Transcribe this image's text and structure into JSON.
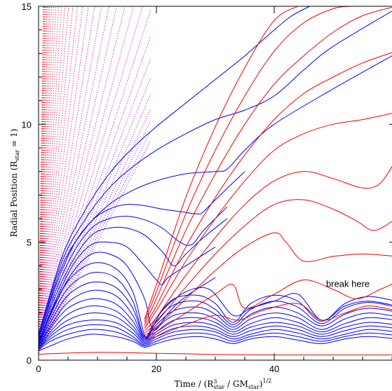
{
  "chart_data": {
    "type": "line",
    "title": "",
    "xlabel": {
      "pre": "Time / (R",
      "sup1": "3",
      "sub1": "star",
      "mid": " / GM",
      "sub2": "star",
      "post": ")",
      "sup2": "1/2"
    },
    "ylabel": {
      "pre": "Radial Position (R",
      "sub": "star",
      "post": " = 1)"
    },
    "xlim": [
      0,
      60.7
    ],
    "ylim": [
      0,
      15
    ],
    "xticks": [
      0,
      20,
      40
    ],
    "yticks": [
      0,
      5,
      10,
      15
    ],
    "annotation": {
      "text": "break here",
      "x": 52.5,
      "y": 3.1
    },
    "colors": {
      "bound": "#0000ee",
      "unbound": "#ee0000"
    },
    "series": [
      {
        "color": "red",
        "x": [
          0,
          5,
          10,
          15,
          18,
          25,
          30,
          40,
          50,
          60.7
        ],
        "y": [
          0.25,
          0.3,
          0.33,
          0.32,
          0.3,
          0.27,
          0.24,
          0.22,
          0.22,
          0.22
        ]
      },
      {
        "color": "blue",
        "x": [
          0,
          2,
          5,
          9,
          13,
          16,
          18,
          20,
          23,
          27,
          30,
          33,
          36,
          40,
          44,
          48,
          52,
          56,
          60.7
        ],
        "y": [
          0.4,
          0.6,
          0.9,
          1.1,
          1.0,
          0.8,
          0.55,
          0.7,
          0.9,
          1.0,
          0.9,
          0.7,
          0.9,
          1.0,
          0.85,
          0.7,
          0.9,
          1.0,
          0.9
        ]
      },
      {
        "color": "blue",
        "x": [
          0,
          2,
          5,
          9,
          13,
          16,
          18,
          20,
          23,
          27,
          30,
          33,
          36,
          40,
          44,
          48,
          52,
          56,
          60.7
        ],
        "y": [
          0.45,
          0.8,
          1.1,
          1.3,
          1.2,
          0.9,
          0.6,
          0.8,
          1.05,
          1.15,
          1.05,
          0.8,
          1.0,
          1.15,
          1.0,
          0.8,
          1.0,
          1.15,
          1.05
        ]
      },
      {
        "color": "blue",
        "x": [
          0,
          2,
          5,
          9,
          13,
          16,
          18,
          20,
          23,
          27,
          30,
          33,
          36,
          40,
          44,
          48,
          52,
          56,
          60.7
        ],
        "y": [
          0.5,
          0.9,
          1.3,
          1.5,
          1.4,
          1.0,
          0.65,
          0.9,
          1.2,
          1.3,
          1.2,
          0.9,
          1.1,
          1.3,
          1.15,
          0.9,
          1.1,
          1.3,
          1.2
        ]
      },
      {
        "color": "blue",
        "x": [
          0,
          2,
          5,
          9,
          13,
          16,
          18,
          20,
          23,
          27,
          30,
          33,
          36,
          40,
          44,
          48,
          52,
          56,
          60.7
        ],
        "y": [
          0.5,
          1.0,
          1.5,
          1.7,
          1.6,
          1.15,
          0.7,
          1.0,
          1.35,
          1.45,
          1.3,
          1.0,
          1.25,
          1.45,
          1.3,
          1.0,
          1.25,
          1.45,
          1.35
        ]
      },
      {
        "color": "blue",
        "x": [
          0,
          2,
          5,
          9,
          13,
          16,
          18,
          20,
          23,
          27,
          30,
          33,
          36,
          40,
          44,
          48,
          52,
          56,
          60.7
        ],
        "y": [
          0.55,
          1.1,
          1.7,
          2.0,
          1.85,
          1.3,
          0.75,
          1.1,
          1.5,
          1.6,
          1.45,
          1.1,
          1.4,
          1.6,
          1.45,
          1.1,
          1.4,
          1.6,
          1.5
        ]
      },
      {
        "color": "blue",
        "x": [
          0,
          2,
          5,
          9,
          13,
          16,
          18,
          20,
          23,
          27,
          30,
          33,
          36,
          40,
          44,
          48,
          52,
          56,
          60.7
        ],
        "y": [
          0.6,
          1.2,
          1.95,
          2.3,
          2.1,
          1.45,
          0.8,
          1.2,
          1.7,
          1.8,
          1.6,
          1.2,
          1.55,
          1.8,
          1.6,
          1.2,
          1.55,
          1.8,
          1.7
        ]
      },
      {
        "color": "blue",
        "x": [
          0,
          2,
          5,
          9,
          13,
          16,
          18,
          20,
          23,
          27,
          30,
          33,
          36,
          40,
          44,
          48,
          52,
          56,
          60.7
        ],
        "y": [
          0.6,
          1.35,
          2.2,
          2.6,
          2.4,
          1.65,
          0.85,
          1.35,
          1.9,
          2.0,
          1.75,
          1.3,
          1.75,
          2.0,
          1.8,
          1.3,
          1.75,
          2.0,
          1.85
        ]
      },
      {
        "color": "blue",
        "x": [
          0,
          2,
          5,
          9,
          13,
          16,
          18,
          20,
          23,
          27,
          30,
          33,
          36,
          40,
          44,
          48,
          52,
          56,
          60.7
        ],
        "y": [
          0.65,
          1.45,
          2.45,
          2.95,
          2.75,
          1.9,
          0.9,
          1.5,
          2.1,
          2.25,
          1.95,
          1.4,
          1.95,
          2.25,
          2.0,
          1.45,
          1.95,
          2.2,
          2.05
        ]
      },
      {
        "color": "blue",
        "x": [
          0,
          2,
          5,
          9,
          13,
          16,
          18,
          20,
          23,
          27,
          30,
          33,
          36,
          40,
          44,
          48,
          52,
          56,
          60.7
        ],
        "y": [
          0.7,
          1.6,
          2.75,
          3.3,
          3.1,
          2.2,
          0.95,
          1.65,
          2.35,
          2.5,
          2.15,
          1.5,
          2.15,
          2.5,
          2.25,
          1.55,
          2.2,
          2.45,
          2.25
        ]
      },
      {
        "color": "blue",
        "x": [
          0,
          2,
          5,
          9,
          13,
          16,
          18,
          20,
          23,
          27,
          30,
          33,
          36,
          40,
          44,
          48,
          52,
          56,
          60.7
        ],
        "y": [
          0.7,
          1.75,
          3.05,
          3.7,
          3.5,
          2.5,
          1.0,
          1.8,
          2.6,
          2.75,
          2.4,
          1.6,
          2.4,
          2.75,
          2.5,
          1.65,
          2.4,
          2.7,
          2.5
        ]
      },
      {
        "color": "blue",
        "x": [
          0,
          2,
          5,
          9,
          13,
          16,
          18,
          19,
          21,
          25,
          29,
          33,
          36,
          40,
          44,
          48,
          52,
          56,
          60.7
        ],
        "y": [
          0.75,
          1.9,
          3.35,
          4.1,
          3.9,
          2.9,
          1.05,
          1.2,
          2.1,
          2.9,
          3.0,
          1.9,
          2.2,
          2.5,
          2.8,
          1.7,
          2.3,
          2.5,
          2.3
        ]
      },
      {
        "color": "blue",
        "x": [
          0,
          3,
          6,
          9,
          12,
          15,
          18,
          19,
          20,
          22,
          25,
          30
        ],
        "y": [
          0.8,
          2.5,
          3.8,
          4.5,
          4.5,
          4.0,
          2.6,
          1.5,
          1.3,
          2.0,
          2.7,
          3.5
        ]
      },
      {
        "color": "blue",
        "x": [
          0,
          3,
          6,
          9,
          12,
          15,
          18,
          20,
          21,
          22,
          25,
          30
        ],
        "y": [
          0.8,
          2.6,
          4.1,
          4.9,
          5.0,
          4.8,
          4.0,
          3.4,
          3.2,
          3.5,
          4.0,
          4.8
        ]
      },
      {
        "color": "blue",
        "x": [
          0,
          3,
          6,
          9,
          12,
          15,
          18,
          21,
          23,
          25,
          28,
          32
        ],
        "y": [
          0.9,
          2.8,
          4.3,
          5.3,
          5.6,
          5.6,
          5.3,
          4.6,
          4.0,
          4.5,
          5.2,
          6.0
        ]
      },
      {
        "color": "blue",
        "x": [
          0,
          3,
          6,
          9,
          12,
          15,
          18,
          21,
          24,
          26,
          28,
          32
        ],
        "y": [
          0.9,
          3.0,
          4.6,
          5.6,
          6.0,
          6.1,
          5.95,
          5.6,
          5.0,
          4.9,
          5.5,
          6.5
        ]
      },
      {
        "color": "blue",
        "x": [
          0,
          3,
          6,
          9,
          12,
          15,
          18,
          21,
          24,
          27,
          28,
          30,
          35
        ],
        "y": [
          1.0,
          3.2,
          4.9,
          5.9,
          6.4,
          6.6,
          6.55,
          6.4,
          6.3,
          6.2,
          6.3,
          6.8,
          8.0
        ]
      },
      {
        "color": "blue",
        "x": [
          0,
          4,
          8,
          12,
          16,
          20,
          25,
          30,
          32,
          35,
          40,
          50,
          60.7
        ],
        "y": [
          1.0,
          4.0,
          5.6,
          6.6,
          7.2,
          7.6,
          7.9,
          8.0,
          8.1,
          8.9,
          10.0,
          11.5,
          13.0
        ]
      },
      {
        "color": "blue",
        "x": [
          0,
          4,
          8,
          12,
          16,
          20,
          25,
          30,
          35,
          40,
          45,
          50,
          60.7
        ],
        "y": [
          1.1,
          4.2,
          6.0,
          7.3,
          8.2,
          8.9,
          9.6,
          10.2,
          10.6,
          11.2,
          12.3,
          13.3,
          14.9
        ]
      },
      {
        "color": "blue",
        "x": [
          0,
          4,
          8,
          12,
          16,
          20,
          25,
          30,
          35,
          40,
          43,
          46
        ],
        "y": [
          1.1,
          4.4,
          6.4,
          7.9,
          9.0,
          9.9,
          10.9,
          11.9,
          12.9,
          14.0,
          14.6,
          15.0
        ]
      },
      {
        "color": "red",
        "x": [
          18,
          20,
          25,
          30,
          34,
          38,
          44,
          48,
          52,
          56,
          60.7
        ],
        "y": [
          0.85,
          1.0,
          1.5,
          1.9,
          1.7,
          2.1,
          2.4,
          1.7,
          2.0,
          2.3,
          2.1
        ]
      },
      {
        "color": "red",
        "x": [
          18,
          20,
          25,
          30,
          33,
          35,
          40,
          45,
          50,
          54,
          58,
          60.7
        ],
        "y": [
          0.95,
          1.2,
          2.0,
          2.8,
          3.2,
          2.2,
          2.8,
          3.4,
          3.0,
          2.6,
          3.0,
          3.3
        ]
      },
      {
        "color": "red",
        "x": [
          18,
          20,
          25,
          30,
          35,
          40,
          42,
          45,
          50,
          55,
          60.7
        ],
        "y": [
          1.05,
          1.4,
          2.6,
          3.8,
          4.8,
          5.4,
          5.0,
          4.2,
          4.4,
          4.5,
          4.4
        ]
      },
      {
        "color": "red",
        "x": [
          18,
          20,
          25,
          30,
          35,
          40,
          45,
          50,
          54,
          57,
          60.7
        ],
        "y": [
          1.15,
          1.6,
          3.1,
          4.5,
          5.7,
          6.6,
          6.8,
          6.4,
          5.9,
          5.5,
          6.0
        ]
      },
      {
        "color": "red",
        "x": [
          18,
          20,
          25,
          30,
          35,
          40,
          45,
          50,
          55,
          58,
          60.7
        ],
        "y": [
          1.25,
          1.8,
          3.6,
          5.2,
          6.6,
          7.6,
          8.0,
          7.7,
          7.3,
          7.5,
          8.5
        ]
      },
      {
        "color": "red",
        "x": [
          18,
          20,
          25,
          30,
          35,
          40,
          45,
          50,
          55,
          60.7
        ],
        "y": [
          1.35,
          2.1,
          4.2,
          6.0,
          7.6,
          8.9,
          9.6,
          10.0,
          10.2,
          10.5
        ]
      },
      {
        "color": "red",
        "x": [
          18,
          20,
          25,
          30,
          35,
          40,
          45,
          50,
          55,
          60.7
        ],
        "y": [
          1.45,
          2.3,
          4.8,
          6.9,
          8.7,
          10.2,
          11.3,
          12.0,
          12.6,
          13.1
        ]
      },
      {
        "color": "red",
        "x": [
          18,
          20,
          25,
          30,
          35,
          40,
          45,
          50,
          55,
          60.7
        ],
        "y": [
          1.55,
          2.6,
          5.5,
          7.9,
          10.0,
          11.7,
          12.9,
          13.9,
          14.6,
          15.0
        ]
      },
      {
        "color": "red",
        "x": [
          18,
          20,
          25,
          30,
          35,
          40,
          45,
          50,
          53
        ],
        "y": [
          1.65,
          2.9,
          6.2,
          8.9,
          11.2,
          13.1,
          14.3,
          14.9,
          15.0
        ]
      },
      {
        "color": "red",
        "x": [
          18,
          20,
          25,
          30,
          35,
          40,
          44
        ],
        "y": [
          1.75,
          3.2,
          6.9,
          9.9,
          12.4,
          14.4,
          15.0
        ]
      }
    ]
  }
}
